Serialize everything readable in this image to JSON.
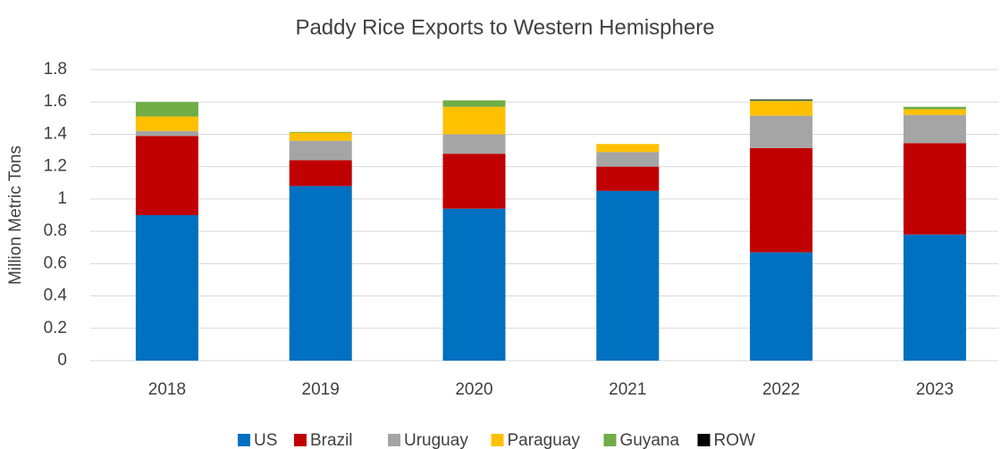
{
  "chart_data": {
    "type": "stacked_bar",
    "title": "Paddy Rice Exports to Western Hemisphere",
    "y_label": "Million Metric Tons",
    "categories": [
      "2018",
      "2019",
      "2020",
      "2021",
      "2022",
      "2023"
    ],
    "series": [
      {
        "name": "US",
        "color": "#0070c0",
        "values": [
          0.9,
          1.08,
          0.94,
          1.05,
          0.67,
          0.78
        ]
      },
      {
        "name": "Brazil",
        "color": "#c00000",
        "values": [
          0.49,
          0.16,
          0.34,
          0.15,
          0.645,
          0.565
        ]
      },
      {
        "name": "Uruguay",
        "color": "#a5a5a5",
        "values": [
          0.03,
          0.12,
          0.12,
          0.09,
          0.2,
          0.175
        ]
      },
      {
        "name": "Paraguay",
        "color": "#ffc000",
        "values": [
          0.09,
          0.05,
          0.17,
          0.05,
          0.09,
          0.035
        ]
      },
      {
        "name": "Guyana",
        "color": "#70ad47",
        "values": [
          0.09,
          0.005,
          0.04,
          0,
          0.005,
          0.015
        ]
      },
      {
        "name": "ROW",
        "color": "#000000",
        "values": [
          0,
          0,
          0,
          0,
          0.005,
          0
        ]
      }
    ],
    "ylim": [
      0,
      1.8
    ],
    "yticks": [
      0,
      0.2,
      0.4,
      0.6,
      0.8,
      1,
      1.2,
      1.4,
      1.6,
      1.8
    ],
    "grid": true,
    "legend": "bottom"
  }
}
